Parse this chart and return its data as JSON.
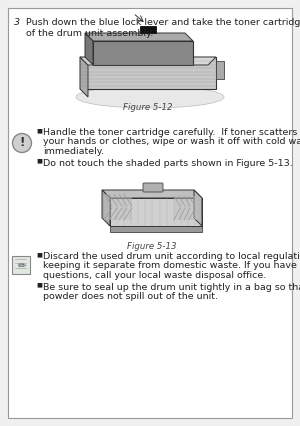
{
  "page_bg": "#f0f0f0",
  "content_bg": "#ffffff",
  "text_color": "#222222",
  "caption_color": "#444444",
  "font_size_body": 6.8,
  "font_size_caption": 6.2,
  "step3_num": "3",
  "step3_line1": "Push down the blue lock lever and take the toner cartridge out",
  "step3_line2": "of the drum unit assembly.",
  "fig512_label": "Figure 5-12",
  "fig513_label": "Figure 5-13",
  "warn_bullet1_line1": "Handle the toner cartridge carefully.  If toner scatters on",
  "warn_bullet1_line2": "your hands or clothes, wipe or wash it off with cold water",
  "warn_bullet1_line3": "immediately.",
  "warn_bullet2": "Do not touch the shaded parts shown in Figure 5-13.",
  "note_bullet1_line1": "Discard the used drum unit according to local regulations,",
  "note_bullet1_line2": "keeping it separate from domestic waste. If you have",
  "note_bullet1_line3": "questions, call your local waste disposal office.",
  "note_bullet2_line1": "Be sure to seal up the drum unit tightly in a bag so that toner",
  "note_bullet2_line2": "powder does not spill out of the unit."
}
